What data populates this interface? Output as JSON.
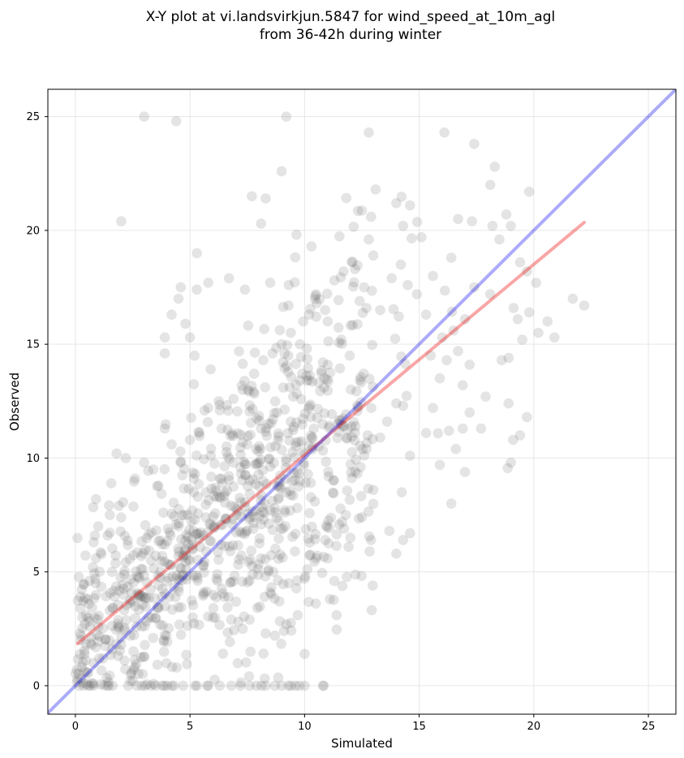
{
  "chart_data": {
    "type": "scatter",
    "title_lines": [
      "X-Y plot at vi.landsvirkjun.5847 for wind_speed_at_10m_agl",
      "from 36-42h during winter"
    ],
    "xlabel": "Simulated",
    "ylabel": "Observed",
    "xlim": [
      -1.2,
      26.2
    ],
    "ylim": [
      -1.25,
      26.2
    ],
    "xticks": [
      0,
      5,
      10,
      15,
      20,
      25
    ],
    "yticks": [
      0,
      5,
      10,
      15,
      20,
      25
    ],
    "grid": true,
    "point_color": "#555555",
    "identity_line": {
      "color": "#0000ee",
      "from": [
        -1.2,
        -1.2
      ],
      "to": [
        26.2,
        26.2
      ]
    },
    "fit_line": {
      "color": "#ee0000",
      "from": [
        0.1,
        1.85
      ],
      "to": [
        22.2,
        20.35
      ]
    },
    "point_count": 1100,
    "points": [
      [
        3.0,
        25.0
      ],
      [
        4.4,
        24.8
      ],
      [
        9.2,
        25.0
      ],
      [
        12.8,
        24.3
      ],
      [
        16.1,
        24.3
      ],
      [
        17.4,
        23.8
      ],
      [
        18.3,
        22.8
      ],
      [
        9.0,
        22.6
      ],
      [
        13.1,
        21.8
      ],
      [
        18.1,
        22.0
      ],
      [
        19.8,
        21.7
      ],
      [
        7.7,
        21.5
      ],
      [
        8.3,
        21.4
      ],
      [
        14.6,
        21.1
      ],
      [
        14.0,
        21.2
      ],
      [
        2.0,
        20.4
      ],
      [
        8.1,
        20.3
      ],
      [
        12.9,
        20.6
      ],
      [
        16.7,
        20.5
      ],
      [
        17.3,
        20.4
      ],
      [
        18.2,
        20.2
      ],
      [
        18.8,
        20.7
      ],
      [
        19.0,
        20.2
      ],
      [
        14.3,
        20.2
      ],
      [
        15.1,
        19.7
      ],
      [
        12.8,
        19.6
      ],
      [
        10.3,
        19.3
      ],
      [
        18.5,
        19.6
      ],
      [
        5.3,
        19.0
      ],
      [
        19.4,
        18.6
      ],
      [
        19.7,
        18.2
      ],
      [
        20.1,
        17.7
      ],
      [
        5.0,
        15.3
      ],
      [
        3.9,
        15.3
      ],
      [
        4.8,
        15.9
      ],
      [
        4.2,
        16.3
      ],
      [
        4.5,
        17.0
      ],
      [
        4.6,
        17.5
      ],
      [
        5.3,
        17.4
      ],
      [
        5.8,
        17.7
      ],
      [
        6.7,
        17.9
      ],
      [
        7.4,
        17.4
      ],
      [
        8.5,
        17.7
      ],
      [
        9.3,
        16.7
      ],
      [
        3.9,
        14.6
      ],
      [
        5.2,
        14.5
      ],
      [
        5.9,
        13.9
      ],
      [
        21.7,
        17.0
      ],
      [
        22.2,
        16.7
      ],
      [
        20.6,
        16.0
      ],
      [
        20.2,
        15.5
      ],
      [
        20.9,
        15.3
      ],
      [
        19.8,
        16.4
      ],
      [
        19.3,
        16.1
      ],
      [
        18.1,
        17.2
      ],
      [
        17.4,
        17.5
      ],
      [
        16.4,
        18.8
      ],
      [
        18.9,
        14.4
      ],
      [
        18.6,
        14.3
      ],
      [
        19.5,
        15.2
      ],
      [
        17.9,
        12.7
      ],
      [
        17.7,
        11.3
      ],
      [
        17.2,
        12.0
      ],
      [
        18.9,
        12.4
      ],
      [
        19.7,
        11.8
      ],
      [
        19.4,
        11.0
      ],
      [
        19.1,
        10.8
      ],
      [
        19.0,
        9.8
      ],
      [
        16.9,
        11.3
      ],
      [
        16.6,
        10.4
      ],
      [
        15.9,
        9.7
      ],
      [
        16.4,
        8.0
      ],
      [
        14.6,
        10.1
      ],
      [
        15.3,
        11.1
      ],
      [
        14.3,
        12.3
      ],
      [
        15.6,
        12.2
      ],
      [
        16.3,
        11.2
      ],
      [
        16.9,
        13.2
      ],
      [
        17.2,
        14.1
      ],
      [
        16.2,
        14.3
      ],
      [
        15.5,
        14.5
      ],
      [
        16.0,
        15.3
      ],
      [
        16.5,
        15.6
      ],
      [
        17.0,
        16.1
      ],
      [
        16.7,
        14.7
      ],
      [
        15.9,
        13.5
      ],
      [
        14.0,
        12.4
      ],
      [
        13.6,
        11.6
      ],
      [
        13.3,
        10.9
      ],
      [
        12.7,
        10.4
      ],
      [
        12.2,
        9.4
      ],
      [
        13.0,
        8.6
      ],
      [
        12.5,
        7.4
      ],
      [
        12.9,
        6.4
      ],
      [
        13.7,
        6.8
      ],
      [
        14.0,
        5.8
      ],
      [
        14.3,
        6.4
      ],
      [
        14.6,
        6.7
      ],
      [
        11.4,
        3.1
      ],
      [
        11.3,
        4.6
      ],
      [
        11.1,
        3.8
      ],
      [
        11.0,
        5.6
      ],
      [
        10.5,
        5.6
      ],
      [
        10.9,
        6.4
      ],
      [
        12.0,
        6.5
      ],
      [
        11.8,
        7.5
      ],
      [
        10.0,
        4.7
      ],
      [
        9.7,
        3.1
      ],
      [
        10.0,
        1.4
      ],
      [
        9.3,
        4.5
      ],
      [
        8.9,
        3.7
      ],
      [
        8.5,
        4.1
      ],
      [
        9.2,
        2.7
      ],
      [
        8.7,
        2.2
      ],
      [
        8.3,
        2.3
      ],
      [
        7.6,
        2.9
      ],
      [
        7.3,
        2.5
      ],
      [
        6.8,
        2.9
      ],
      [
        6.5,
        3.9
      ],
      [
        6.1,
        3.0
      ],
      [
        6.2,
        4.6
      ],
      [
        5.6,
        5.3
      ],
      [
        5.0,
        5.5
      ],
      [
        4.5,
        4.3
      ],
      [
        4.1,
        3.9
      ],
      [
        3.6,
        3.4
      ],
      [
        3.2,
        3.0
      ],
      [
        2.9,
        2.6
      ],
      [
        2.4,
        2.2
      ],
      [
        2.0,
        1.8
      ],
      [
        1.6,
        1.6
      ],
      [
        1.2,
        1.2
      ],
      [
        0.8,
        1.0
      ],
      [
        0.5,
        0.6
      ],
      [
        0.4,
        1.4
      ],
      [
        0.2,
        2.3
      ],
      [
        0.3,
        3.0
      ],
      [
        0.6,
        4.6
      ],
      [
        0.9,
        5.6
      ],
      [
        0.8,
        6.3
      ],
      [
        1.0,
        7.0
      ],
      [
        0.9,
        8.2
      ],
      [
        1.5,
        7.5
      ],
      [
        1.9,
        7.9
      ],
      [
        1.8,
        10.2
      ],
      [
        2.2,
        10.0
      ],
      [
        2.6,
        9.1
      ],
      [
        3.0,
        9.8
      ],
      [
        3.4,
        9.5
      ],
      [
        3.9,
        11.3
      ],
      [
        4.2,
        10.6
      ],
      [
        4.6,
        9.8
      ],
      [
        5.0,
        10.8
      ],
      [
        5.4,
        11.1
      ],
      [
        5.8,
        12.2
      ],
      [
        6.3,
        12.1
      ],
      [
        6.9,
        12.6
      ],
      [
        7.3,
        13.0
      ],
      [
        7.8,
        13.7
      ],
      [
        8.2,
        14.3
      ],
      [
        8.6,
        14.6
      ],
      [
        9.0,
        15.0
      ],
      [
        9.4,
        15.5
      ],
      [
        9.8,
        15.0
      ],
      [
        10.2,
        16.3
      ],
      [
        10.5,
        17.2
      ],
      [
        10.9,
        16.5
      ],
      [
        11.3,
        17.8
      ],
      [
        11.7,
        18.2
      ],
      [
        12.2,
        18.3
      ],
      [
        12.6,
        17.5
      ],
      [
        13.0,
        18.9
      ],
      [
        13.3,
        16.5
      ],
      [
        13.8,
        17.9
      ],
      [
        14.2,
        18.5
      ],
      [
        14.5,
        17.6
      ],
      [
        14.9,
        17.2
      ],
      [
        15.3,
        16.3
      ],
      [
        15.6,
        18.0
      ],
      [
        12.4,
        16.9
      ],
      [
        11.6,
        15.2
      ],
      [
        10.8,
        14.2
      ],
      [
        10.1,
        13.4
      ],
      [
        9.5,
        12.7
      ],
      [
        8.8,
        12.0
      ],
      [
        8.1,
        11.3
      ],
      [
        7.5,
        10.6
      ],
      [
        6.9,
        9.8
      ],
      [
        6.3,
        9.1
      ],
      [
        5.7,
        8.5
      ],
      [
        5.1,
        7.7
      ],
      [
        4.5,
        7.0
      ],
      [
        3.9,
        6.2
      ],
      [
        3.3,
        5.5
      ],
      [
        2.7,
        4.8
      ],
      [
        2.1,
        4.0
      ],
      [
        1.5,
        3.3
      ],
      [
        1.0,
        2.6
      ],
      [
        2.3,
        0.0
      ],
      [
        2.9,
        0.0
      ],
      [
        3.5,
        0.0
      ],
      [
        4.0,
        0.0
      ],
      [
        4.7,
        0.0
      ],
      [
        5.3,
        0.0
      ],
      [
        5.8,
        0.0
      ],
      [
        6.3,
        0.0
      ],
      [
        6.8,
        0.0
      ],
      [
        7.2,
        0.0
      ],
      [
        7.6,
        0.0
      ],
      [
        7.9,
        0.0
      ],
      [
        8.3,
        0.0
      ],
      [
        8.7,
        0.0
      ],
      [
        9.0,
        0.0
      ],
      [
        9.3,
        0.0
      ],
      [
        9.6,
        0.0
      ],
      [
        10.0,
        0.0
      ],
      [
        10.8,
        0.0
      ],
      [
        0.8,
        0.0
      ],
      [
        1.4,
        0.0
      ]
    ]
  }
}
